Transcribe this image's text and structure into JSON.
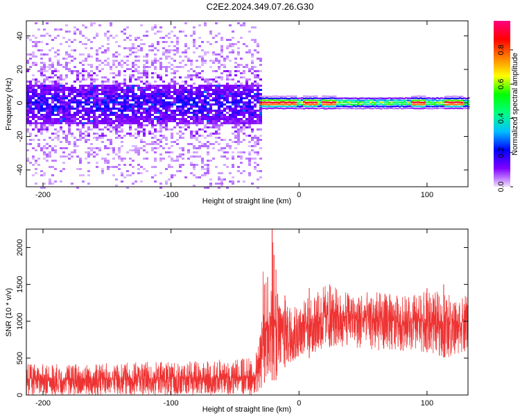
{
  "title": "C2E2.2024.349.07.26.G30",
  "chart_data": [
    {
      "type": "heatmap",
      "panel": "top",
      "xlabel": "Height of straight line (km)",
      "ylabel": "Frequency (Hz)",
      "xlim": [
        -213,
        132
      ],
      "ylim": [
        -50,
        49
      ],
      "xticks": [
        -200,
        -100,
        0,
        100
      ],
      "yticks": [
        -40,
        -20,
        0,
        20,
        40
      ],
      "colorbar": {
        "label": "Normalized spectral amplitude",
        "range": [
          0.0,
          0.97
        ],
        "ticks": [
          0.0,
          0.2,
          0.4,
          0.6,
          0.8
        ],
        "colormap": [
          "#f0e0ff",
          "#8000ff",
          "#0000ff",
          "#00c0ff",
          "#00ff80",
          "#00ff00",
          "#ffff00",
          "#ff8000",
          "#ff0000",
          "#ff0080"
        ]
      },
      "regions": [
        {
          "x_range": [
            -213,
            -31
          ],
          "description_level": "broadband noise",
          "core_freq_range": [
            -12,
            12
          ],
          "spread_freq_range": [
            -50,
            49
          ],
          "peak_amplitude": 0.25
        },
        {
          "x_range": [
            -31,
            132
          ],
          "description_level": "narrow signal",
          "center_freq_hz": 0.5,
          "halfwidth_hz": 2,
          "peak_amplitude": 0.9
        }
      ],
      "hot_spots_x": [
        -30,
        -25,
        -20,
        -15,
        -10,
        -5,
        5,
        10,
        20,
        22,
        25,
        90,
        92,
        95,
        115,
        120,
        125
      ]
    },
    {
      "type": "line",
      "panel": "bottom",
      "xlabel": "Height of straight line (km)",
      "ylabel": "SNR (10 * v/v)",
      "xlim": [
        -213,
        132
      ],
      "ylim": [
        0,
        2250
      ],
      "xticks": [
        -200,
        -100,
        0,
        100
      ],
      "yticks": [
        0,
        500,
        1000,
        1500,
        2000
      ],
      "line_color": "#ee3333",
      "series": [
        {
          "profile": [
            {
              "x": -213,
              "low": 0,
              "mid": 190,
              "high": 420
            },
            {
              "x": -150,
              "low": 0,
              "mid": 200,
              "high": 430
            },
            {
              "x": -100,
              "low": 0,
              "mid": 210,
              "high": 460
            },
            {
              "x": -60,
              "low": 0,
              "mid": 220,
              "high": 480
            },
            {
              "x": -35,
              "low": 0,
              "mid": 230,
              "high": 520
            },
            {
              "x": -31,
              "low": 50,
              "mid": 300,
              "high": 700
            },
            {
              "x": -28,
              "low": 100,
              "mid": 700,
              "high": 1800
            },
            {
              "x": -25,
              "low": 300,
              "mid": 900,
              "high": 1500
            },
            {
              "x": -21,
              "low": 200,
              "mid": 1000,
              "high": 2250
            },
            {
              "x": -18,
              "low": 200,
              "mid": 900,
              "high": 1500
            },
            {
              "x": -14,
              "low": 300,
              "mid": 850,
              "high": 1200
            },
            {
              "x": -10,
              "low": 400,
              "mid": 850,
              "high": 1450
            },
            {
              "x": -5,
              "low": 450,
              "mid": 850,
              "high": 1300
            },
            {
              "x": 0,
              "low": 500,
              "mid": 900,
              "high": 1250
            },
            {
              "x": 10,
              "low": 500,
              "mid": 950,
              "high": 1350
            },
            {
              "x": 20,
              "low": 650,
              "mid": 1050,
              "high": 1500
            },
            {
              "x": 40,
              "low": 650,
              "mid": 1050,
              "high": 1400
            },
            {
              "x": 60,
              "low": 600,
              "mid": 1000,
              "high": 1400
            },
            {
              "x": 80,
              "low": 600,
              "mid": 980,
              "high": 1350
            },
            {
              "x": 100,
              "low": 580,
              "mid": 960,
              "high": 1400
            },
            {
              "x": 115,
              "low": 500,
              "mid": 950,
              "high": 1400
            },
            {
              "x": 132,
              "low": 600,
              "mid": 980,
              "high": 1350
            }
          ],
          "spikes": [
            {
              "x": -24.5,
              "y": 1600
            },
            {
              "x": -21.0,
              "y": 2250
            },
            {
              "x": -19.5,
              "y": 1900
            },
            {
              "x": -18.0,
              "y": 1700
            },
            {
              "x": -27.0,
              "y": 1500
            },
            {
              "x": -11.0,
              "y": 1350
            },
            {
              "x": 8.0,
              "y": 1450
            },
            {
              "x": 24.0,
              "y": 1500
            },
            {
              "x": 100.0,
              "y": 1450
            },
            {
              "x": 113.0,
              "y": 1500
            }
          ]
        }
      ]
    }
  ]
}
